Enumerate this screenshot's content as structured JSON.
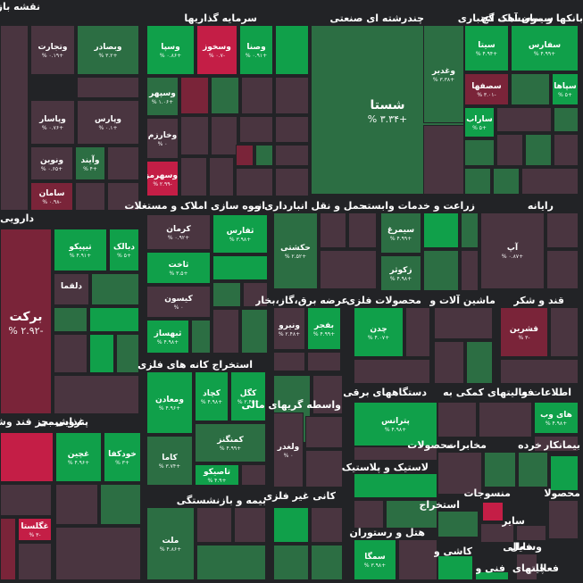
{
  "title": "نقشه بازار",
  "chart_data": {
    "type": "treemap",
    "colors": {
      "pos_strong": "#10a04a",
      "pos": "#1b8f46",
      "pos_mid": "#2c6e43",
      "neutral": "#3c3a42",
      "neg_weak": "#4a3540",
      "neg": "#7a2439",
      "neg_strong": "#c41e46",
      "background": "#222326"
    },
    "sectors": [
      {
        "name": "بانکها و موسسات اعتباری",
        "symbols": [
          {
            "name": "وبصادر",
            "change": "+۳.۲ %"
          },
          {
            "name": "وتجارت",
            "change": "+۰.۱۹ %"
          },
          {
            "name": "وپاسار",
            "change": "+۰.۷۶ %"
          },
          {
            "name": "وپارس",
            "change": "+۰.۱ %"
          },
          {
            "name": "ونوین",
            "change": "+۰.۶۵ %"
          },
          {
            "name": "وآیند",
            "change": "+۴ %"
          },
          {
            "name": "سامان",
            "change": "-۰.۹۸ %"
          }
        ]
      },
      {
        "name": "سرمایه گذاریها",
        "symbols": [
          {
            "name": "وصنا",
            "change": "+۰.۹۱ %"
          },
          {
            "name": "وسخوز",
            "change": "-۰.۷ %"
          },
          {
            "name": "وسپا",
            "change": "+۰.۸۶ %"
          },
          {
            "name": "وسپهر",
            "change": "+۱.۰۶ %"
          },
          {
            "name": "وخارزم",
            "change": "۰ %"
          },
          {
            "name": "وسهرمز",
            "change": "-۲.۹۹ %"
          }
        ]
      },
      {
        "name": "چندرشته ای صنعتی",
        "symbols": [
          {
            "name": "شستا",
            "change": "+۳.۳۴ %"
          },
          {
            "name": "وغدیر",
            "change": "+۳.۳۸ %"
          }
        ]
      },
      {
        "name": "سیمان آهک گچ",
        "symbols": [
          {
            "name": "سفارس",
            "change": "+۴.۹۹ %"
          },
          {
            "name": "سیتا",
            "change": "+۴.۹۴ %"
          },
          {
            "name": "سپاها",
            "change": "+۵ %"
          },
          {
            "name": "سصفها",
            "change": "-۳.۰۱ %"
          },
          {
            "name": "ساراب",
            "change": "+۵ %"
          }
        ]
      },
      {
        "name": "دارویی",
        "symbols": [
          {
            "name": "برکت",
            "change": "-۲.۹۲ %"
          },
          {
            "name": "تیپیکو",
            "change": "+۴.۹۱ %"
          },
          {
            "name": "دبالک",
            "change": "+۵ %"
          },
          {
            "name": "دلقما",
            "change": ""
          }
        ]
      },
      {
        "name": "انبوه سازی املاک و مستغلات",
        "symbols": [
          {
            "name": "کرمان",
            "change": "+۰.۹۲ %"
          },
          {
            "name": "ثفارس",
            "change": "+۳.۹۸ %"
          },
          {
            "name": "ثاخت",
            "change": "+۳.۵ %"
          },
          {
            "name": "کیسون",
            "change": "۰ %"
          },
          {
            "name": "ثبهساز",
            "change": "+۴.۹۸ %"
          }
        ]
      },
      {
        "name": "حمل و نقل انبارداری و",
        "symbols": [
          {
            "name": "حکشتی",
            "change": "+۲.۵۲ %"
          }
        ]
      },
      {
        "name": "زراعت و خدمات وابسته",
        "symbols": [
          {
            "name": "سیمرغ",
            "change": "+۴.۹۹ %"
          },
          {
            "name": "زکوثر",
            "change": "+۴.۹۸ %"
          }
        ]
      },
      {
        "name": "رایانه",
        "symbols": [
          {
            "name": "آپ",
            "change": "+۰.۸۷ %"
          }
        ]
      },
      {
        "name": "عرضه برق،گاز،بخار",
        "symbols": [
          {
            "name": "ونیرو",
            "change": "+۲.۴۸ %"
          },
          {
            "name": "بفجر",
            "change": "+۴.۹۹ %"
          }
        ]
      },
      {
        "name": "محصولات فلزی",
        "symbols": [
          {
            "name": "چدن",
            "change": "+۴.۰۷ %"
          }
        ]
      },
      {
        "name": "ماشین آلات و",
        "symbols": []
      },
      {
        "name": "قند و شکر",
        "symbols": [
          {
            "name": "قشرین",
            "change": "-۳ %"
          }
        ]
      },
      {
        "name": "استخراج کانه های فلزی",
        "symbols": [
          {
            "name": "ومعادن",
            "change": "+۴.۹۶ %"
          },
          {
            "name": "کچاد",
            "change": "+۴.۹۸ %"
          },
          {
            "name": "کگل",
            "change": "+۲.۴۵ %"
          },
          {
            "name": "کمنگنز",
            "change": "+۴.۹۹ %"
          },
          {
            "name": "کاما",
            "change": "+۳.۷۴ %"
          },
          {
            "name": "تاصیکو",
            "change": "+۴.۹ %"
          }
        ]
      },
      {
        "name": "واسطه گریهای مالی",
        "symbols": [
          {
            "name": "ولغدر",
            "change": "۰ %"
          }
        ]
      },
      {
        "name": "دستگاههای برقی",
        "symbols": []
      },
      {
        "name": "فعالیتهای کمکی به",
        "symbols": []
      },
      {
        "name": "اطلاعات و",
        "symbols": [
          {
            "name": "های وب",
            "change": "+۴.۹۸ %"
          }
        ]
      },
      {
        "name": "غذایی بجز قند وشکر",
        "symbols": [
          {
            "name": "غصینو",
            "change": "+۵ %"
          },
          {
            "name": "غچین",
            "change": "+۴.۹۶ %"
          },
          {
            "name": "خودکفا",
            "change": "+۳ %"
          },
          {
            "name": "غگلستا",
            "change": "-۳ %"
          }
        ]
      },
      {
        "name": "پتروشیمی",
        "symbols": [
          {
            "name": "پترانس",
            "change": "+۴.۹۸ %"
          }
        ]
      },
      {
        "name": "بیمه و بازنشستگی",
        "symbols": [
          {
            "name": "ملت",
            "change": "+۴.۸۶ %"
          }
        ]
      },
      {
        "name": "کانی غیر فلزی",
        "symbols": []
      },
      {
        "name": "لاستیک و پلاستیک",
        "symbols": []
      },
      {
        "name": "هتل و رستوران",
        "symbols": [
          {
            "name": "سمگا",
            "change": "+۳.۹۸ %"
          }
        ]
      },
      {
        "name": "مخابرات",
        "symbols": []
      },
      {
        "name": "محصولات",
        "symbols": []
      },
      {
        "name": "خرده",
        "symbols": []
      },
      {
        "name": "بیمانکار",
        "symbols": []
      },
      {
        "name": "منسوجات",
        "symbols": []
      },
      {
        "name": "محصولا",
        "symbols": []
      },
      {
        "name": "استخراج",
        "symbols": []
      },
      {
        "name": "سایر",
        "symbols": []
      },
      {
        "name": "کاشی و",
        "symbols": []
      },
      {
        "name": "فنی و",
        "symbols": []
      },
      {
        "name": "فعالیتهای",
        "symbols": []
      },
      {
        "name": "فعالی",
        "symbols": []
      },
      {
        "name": "وسایل",
        "symbols": []
      },
      {
        "name": "چاپ",
        "symbols": []
      }
    ]
  }
}
